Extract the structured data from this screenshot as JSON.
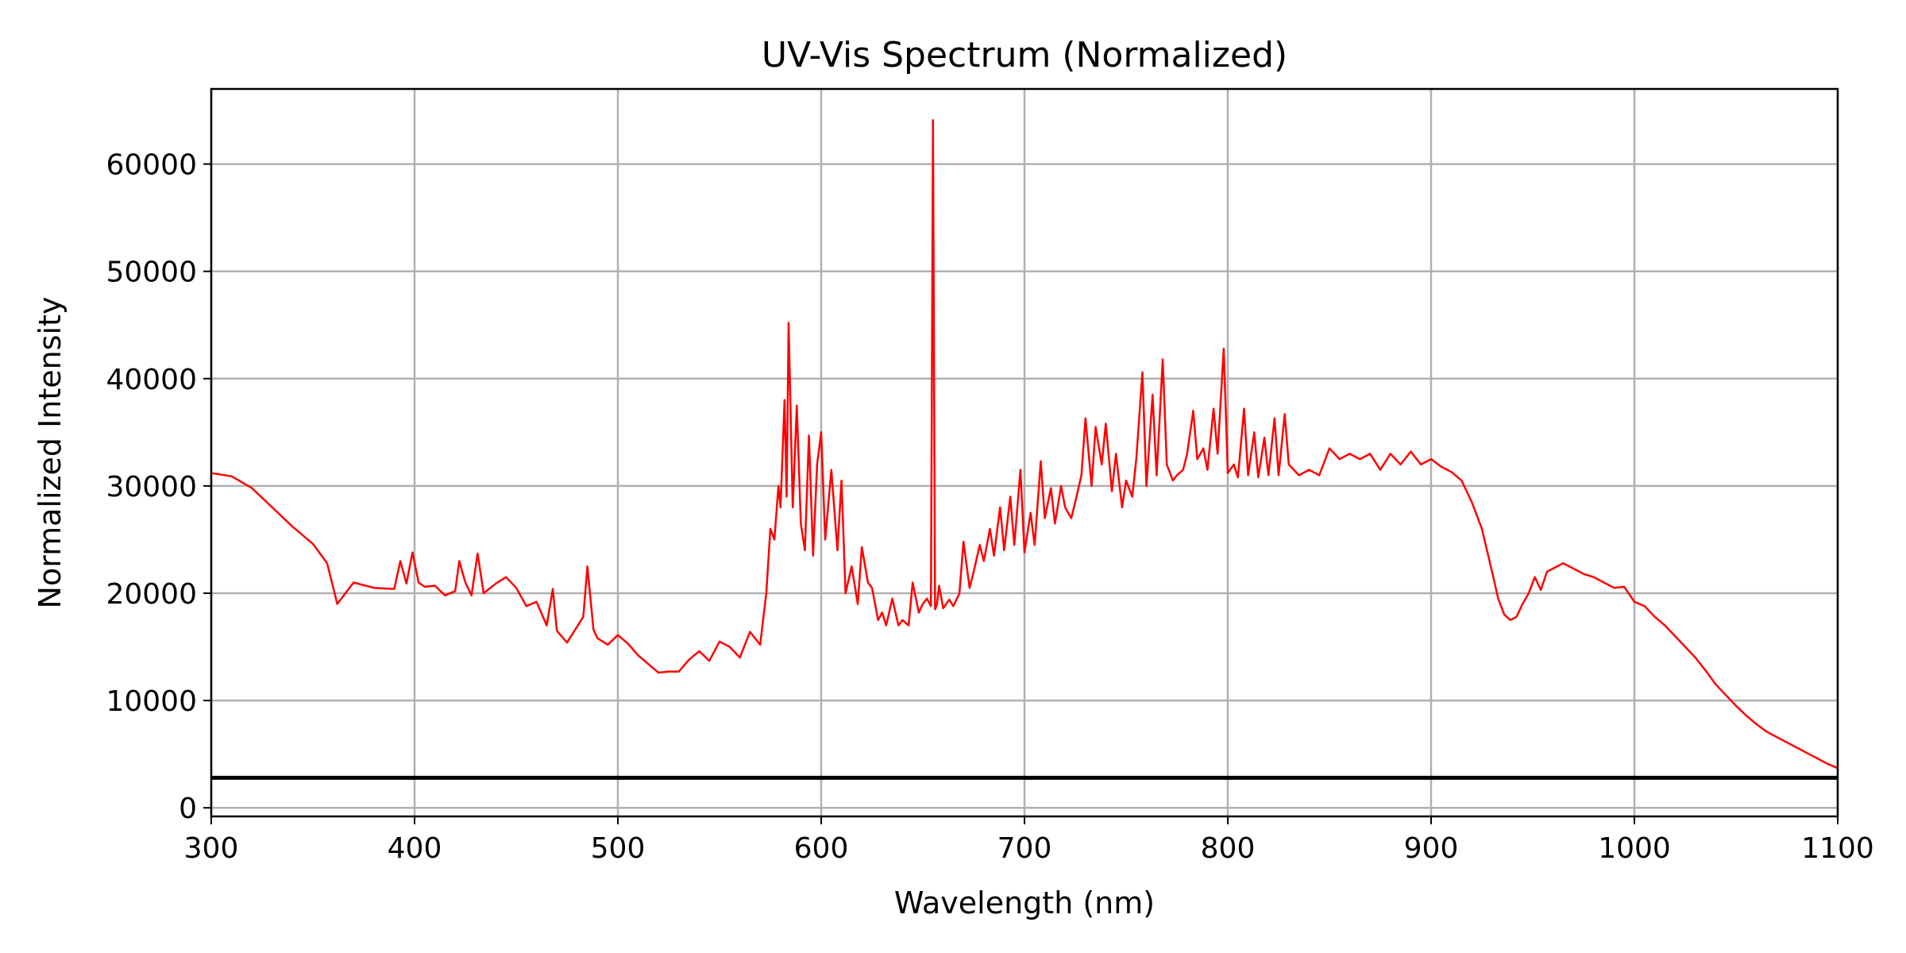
{
  "chart_data": {
    "type": "line",
    "title": "UV-Vis Spectrum (Normalized)",
    "xlabel": "Wavelength (nm)",
    "ylabel": "Normalized Intensity",
    "xlim": [
      300,
      1100
    ],
    "ylim": [
      -800,
      67000
    ],
    "xticks": [
      300,
      400,
      500,
      600,
      700,
      800,
      900,
      1000,
      1100
    ],
    "yticks": [
      0,
      10000,
      20000,
      30000,
      40000,
      50000,
      60000
    ],
    "grid": true,
    "series": [
      {
        "color": "#ff0000",
        "x": [
          300,
          310,
          320,
          330,
          340,
          350,
          357,
          362,
          370,
          380,
          390,
          393,
          396,
          399,
          402,
          405,
          410,
          415,
          420,
          422,
          425,
          428,
          431,
          434,
          440,
          445,
          450,
          455,
          460,
          465,
          468,
          470,
          475,
          480,
          483,
          485,
          488,
          490,
          495,
          500,
          505,
          510,
          515,
          520,
          525,
          530,
          535,
          540,
          545,
          550,
          555,
          560,
          565,
          570,
          573,
          575,
          577,
          579,
          580,
          582,
          583,
          584,
          586,
          588,
          590,
          592,
          594,
          596,
          598,
          600,
          602,
          605,
          608,
          610,
          612,
          615,
          618,
          620,
          623,
          625,
          628,
          630,
          632,
          635,
          638,
          640,
          643,
          645,
          648,
          650,
          652,
          654,
          655,
          656,
          657,
          658,
          660,
          663,
          665,
          668,
          670,
          673,
          675,
          678,
          680,
          683,
          685,
          688,
          690,
          693,
          695,
          698,
          700,
          703,
          705,
          708,
          710,
          713,
          715,
          718,
          720,
          723,
          725,
          728,
          730,
          733,
          735,
          738,
          740,
          743,
          745,
          748,
          750,
          753,
          755,
          758,
          760,
          763,
          765,
          768,
          770,
          773,
          775,
          778,
          780,
          783,
          785,
          788,
          790,
          793,
          795,
          798,
          800,
          803,
          805,
          808,
          810,
          813,
          815,
          818,
          820,
          823,
          825,
          828,
          830,
          835,
          840,
          845,
          850,
          855,
          860,
          865,
          870,
          875,
          880,
          885,
          890,
          895,
          900,
          905,
          910,
          915,
          920,
          925,
          930,
          933,
          936,
          939,
          942,
          945,
          948,
          951,
          954,
          957,
          960,
          965,
          970,
          975,
          980,
          985,
          990,
          995,
          1000,
          1005,
          1010,
          1015,
          1020,
          1025,
          1030,
          1035,
          1040,
          1045,
          1050,
          1055,
          1060,
          1065,
          1070,
          1075,
          1080,
          1085,
          1090,
          1095,
          1100
        ],
        "y": [
          31200,
          30900,
          29800,
          28000,
          26200,
          24600,
          22800,
          19000,
          21000,
          20500,
          20400,
          23000,
          20900,
          23800,
          21000,
          20600,
          20700,
          19800,
          20200,
          23000,
          21000,
          19800,
          23700,
          20000,
          20900,
          21500,
          20500,
          18800,
          19200,
          17000,
          20400,
          16500,
          15400,
          16900,
          17800,
          22500,
          16600,
          15800,
          15200,
          16100,
          15300,
          14200,
          13400,
          12600,
          12700,
          12700,
          13800,
          14600,
          13700,
          15500,
          15000,
          14000,
          16400,
          15200,
          20000,
          26000,
          25000,
          30000,
          28000,
          38000,
          29000,
          45200,
          28000,
          37500,
          26500,
          24000,
          34700,
          23500,
          32000,
          35000,
          25000,
          31500,
          24000,
          30500,
          20000,
          22500,
          19000,
          24300,
          21000,
          20500,
          17500,
          18200,
          17000,
          19500,
          17000,
          17500,
          17000,
          21000,
          18200,
          19000,
          19500,
          18800,
          64100,
          18500,
          19000,
          20700,
          18600,
          19400,
          18800,
          20000,
          24800,
          20500,
          22000,
          24500,
          23000,
          26000,
          23500,
          28000,
          24000,
          29000,
          24500,
          31500,
          23800,
          27500,
          24500,
          32300,
          27000,
          29800,
          26500,
          30000,
          28000,
          27000,
          28500,
          31000,
          36300,
          30000,
          35500,
          32000,
          35800,
          29500,
          33000,
          28000,
          30500,
          29000,
          32500,
          40600,
          30000,
          38500,
          31000,
          41800,
          32000,
          30500,
          31000,
          31500,
          33000,
          37000,
          32500,
          33500,
          31500,
          37200,
          33000,
          42800,
          31200,
          32000,
          30800,
          37200,
          31000,
          35000,
          30800,
          34500,
          31000,
          36300,
          31000,
          36700,
          32000,
          31000,
          31500,
          31000,
          33500,
          32500,
          33000,
          32500,
          33000,
          31500,
          33000,
          32000,
          33200,
          32000,
          32500,
          31800,
          31300,
          30500,
          28500,
          26000,
          22000,
          19500,
          18000,
          17500,
          17800,
          19000,
          20000,
          21500,
          20300,
          22000,
          22300,
          22800,
          22300,
          21800,
          21500,
          21000,
          20500,
          20600,
          19200,
          18800,
          17800,
          17000,
          16000,
          15000,
          14000,
          12800,
          11500,
          10500,
          9500,
          8600,
          7800,
          7100,
          6600,
          6100,
          5600,
          5100,
          4600,
          4100,
          3700
        ]
      },
      {
        "color": "#000000",
        "x": [
          300,
          1100
        ],
        "y": [
          2800,
          2800
        ]
      }
    ]
  }
}
